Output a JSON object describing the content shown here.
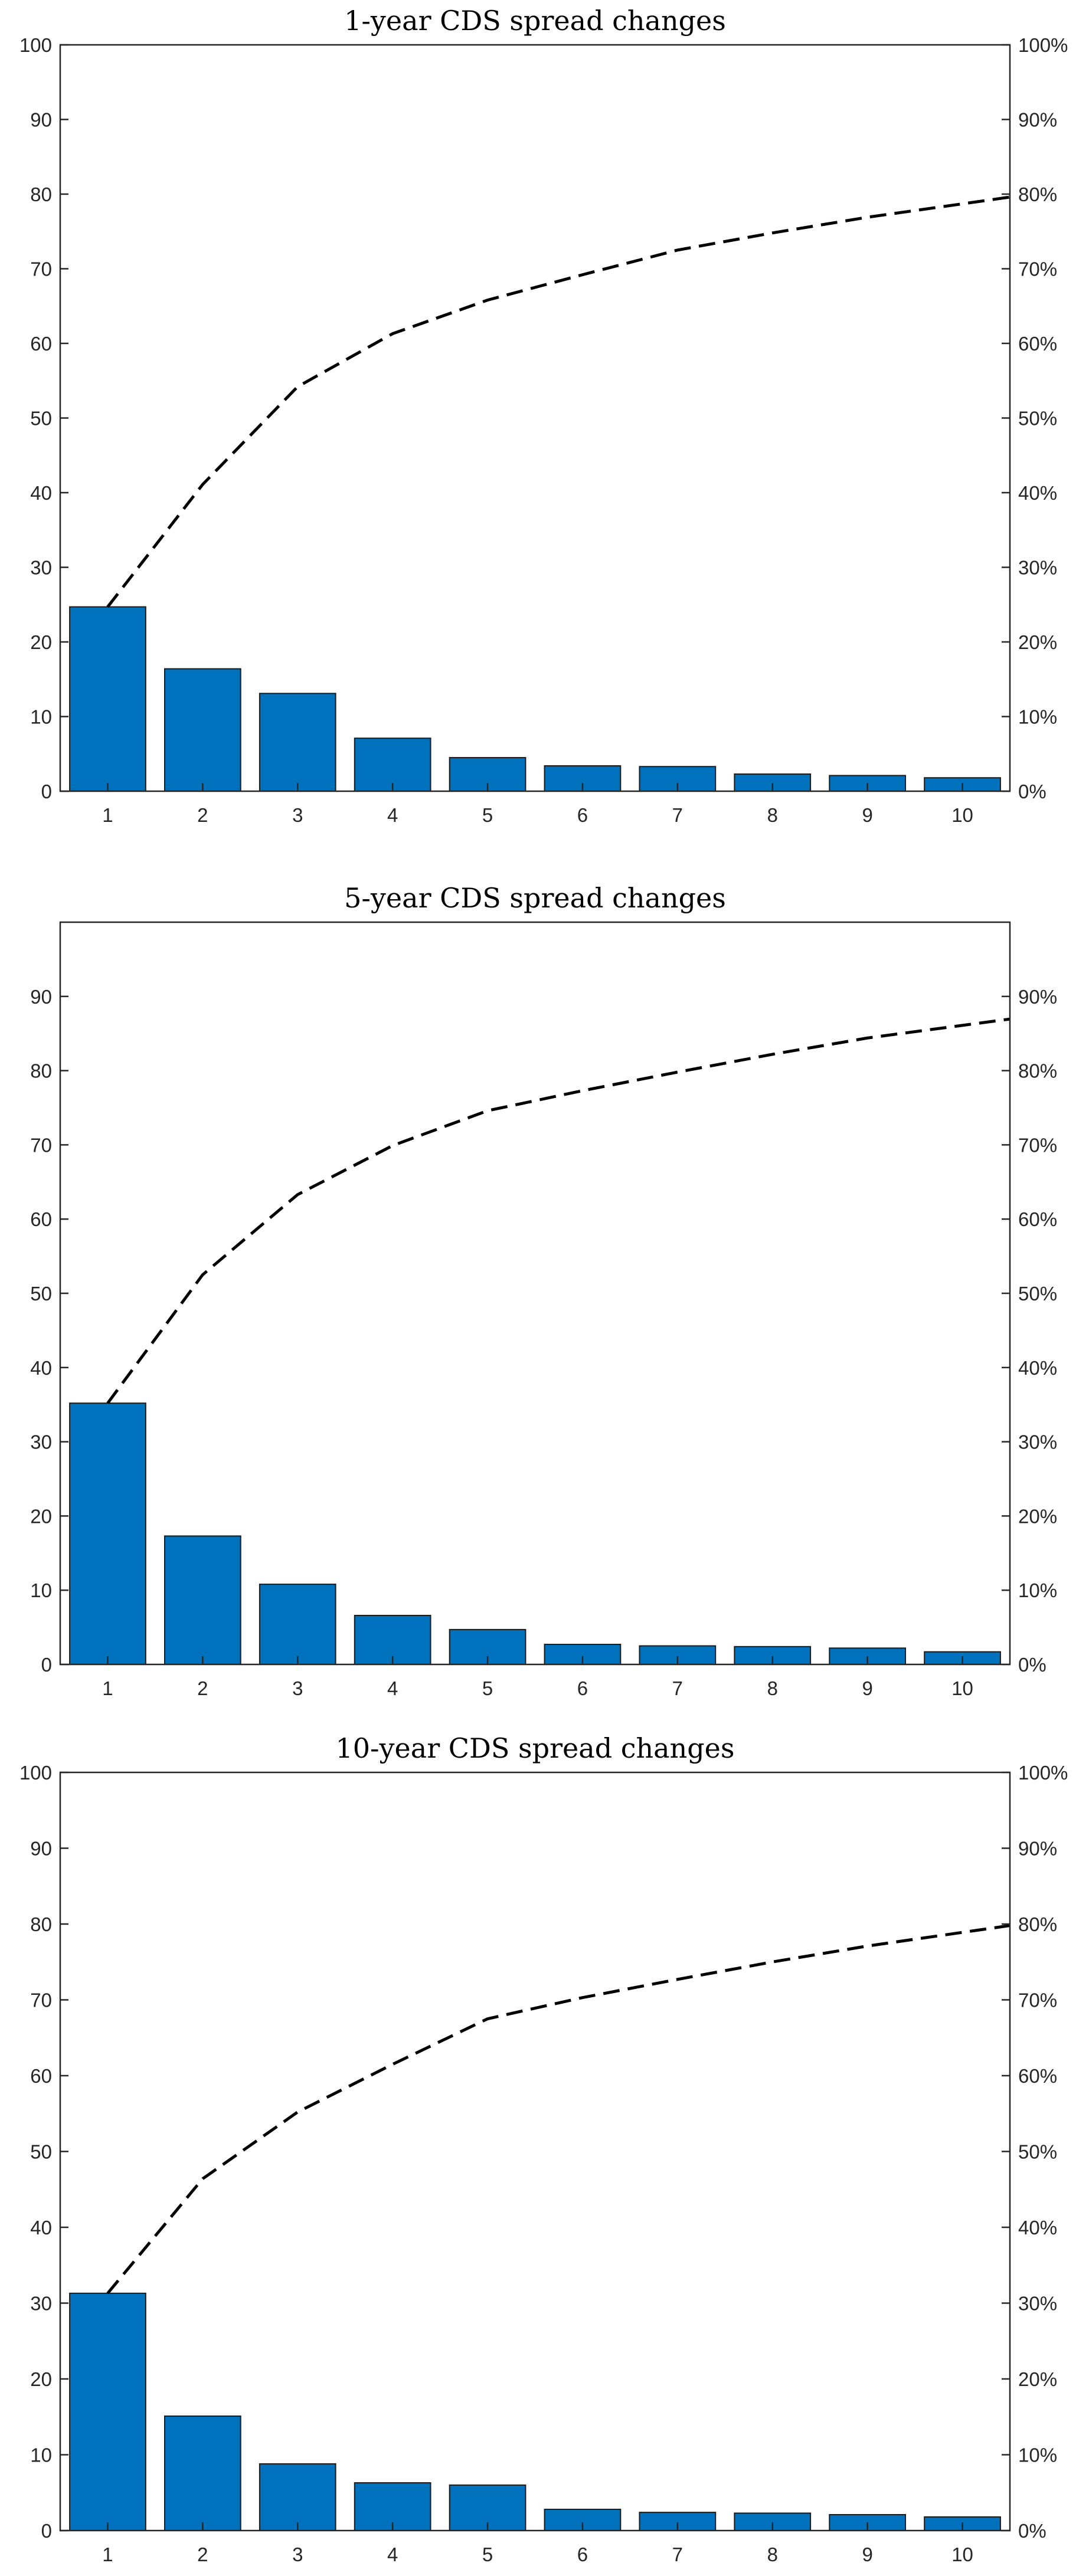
{
  "chart_data": [
    {
      "type": "bar",
      "title": "1-year CDS spread changes",
      "categories": [
        "1",
        "2",
        "3",
        "4",
        "5",
        "6",
        "7",
        "8",
        "9",
        "10"
      ],
      "values": [
        24.7,
        16.4,
        13.1,
        7.1,
        4.5,
        3.4,
        3.3,
        2.3,
        2.1,
        1.8
      ],
      "cumulative": [
        24.7,
        41.1,
        54.2,
        61.3,
        65.8,
        69.2,
        72.5,
        74.8,
        76.9,
        78.7
      ],
      "ylim": [
        0,
        100
      ],
      "yticks": [
        "0",
        "10",
        "20",
        "30",
        "40",
        "50",
        "60",
        "70",
        "80",
        "90",
        "100"
      ],
      "y2ticks": [
        "0%",
        "10%",
        "20%",
        "30%",
        "40%",
        "50%",
        "60%",
        "70%",
        "80%",
        "90%",
        "100%"
      ],
      "xlabel": "",
      "ylabel": "",
      "grid": false
    },
    {
      "type": "bar",
      "title": "5-year CDS spread changes",
      "categories": [
        "1",
        "2",
        "3",
        "4",
        "5",
        "6",
        "7",
        "8",
        "9",
        "10"
      ],
      "values": [
        35.2,
        17.3,
        10.8,
        6.6,
        4.7,
        2.7,
        2.5,
        2.4,
        2.2,
        1.7
      ],
      "cumulative": [
        35.2,
        52.5,
        63.3,
        69.9,
        74.6,
        77.3,
        79.8,
        82.2,
        84.4,
        86.1
      ],
      "ylim": [
        0,
        100
      ],
      "yticks": [
        "0",
        "10",
        "20",
        "30",
        "40",
        "50",
        "60",
        "70",
        "80",
        "90"
      ],
      "y2ticks": [
        "0%",
        "10%",
        "20%",
        "30%",
        "40%",
        "50%",
        "60%",
        "70%",
        "80%",
        "90%"
      ],
      "xlabel": "",
      "ylabel": "",
      "grid": false
    },
    {
      "type": "bar",
      "title": "10-year CDS spread changes",
      "categories": [
        "1",
        "2",
        "3",
        "4",
        "5",
        "6",
        "7",
        "8",
        "9",
        "10"
      ],
      "values": [
        31.3,
        15.1,
        8.8,
        6.3,
        6.0,
        2.8,
        2.4,
        2.3,
        2.1,
        1.8
      ],
      "cumulative": [
        31.3,
        46.4,
        55.2,
        61.5,
        67.5,
        70.3,
        72.7,
        75.0,
        77.1,
        78.9
      ],
      "ylim": [
        0,
        100
      ],
      "yticks": [
        "0",
        "10",
        "20",
        "30",
        "40",
        "50",
        "60",
        "70",
        "80",
        "90",
        "100"
      ],
      "y2ticks": [
        "0%",
        "10%",
        "20%",
        "30%",
        "40%",
        "50%",
        "60%",
        "70%",
        "80%",
        "90%",
        "100%"
      ],
      "xlabel": "",
      "ylabel": "",
      "grid": false
    }
  ]
}
